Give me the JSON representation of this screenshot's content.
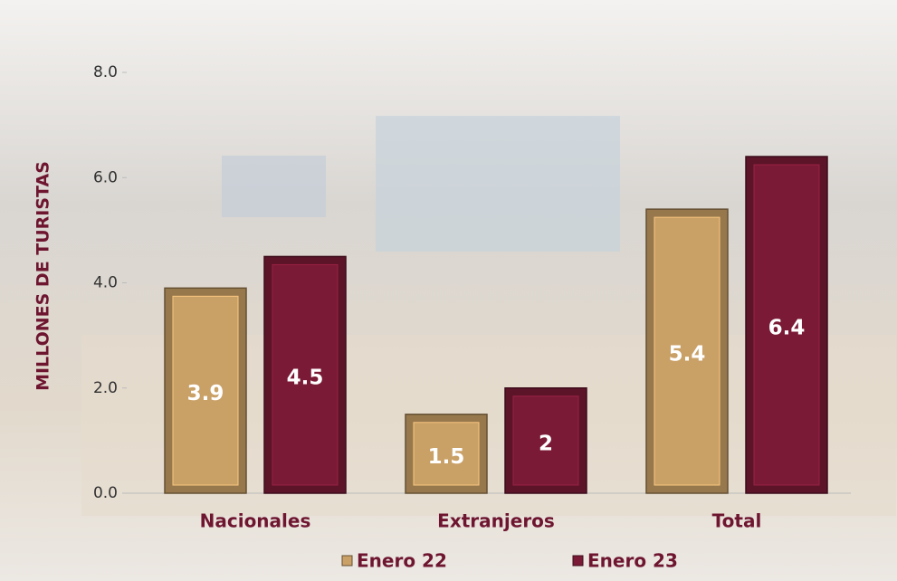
{
  "chart_data": {
    "type": "bar",
    "y_label": "MILLONES DE TURISTAS",
    "categories": [
      "Nacionales",
      "Extranjeros",
      "Total"
    ],
    "series": [
      {
        "name": "Enero 22",
        "color": "#c9a066",
        "values": [
          3.9,
          1.5,
          5.4
        ]
      },
      {
        "name": "Enero 23",
        "color": "#7a1a36",
        "values": [
          4.5,
          2.0,
          6.4
        ]
      }
    ],
    "ylim": [
      0,
      8
    ],
    "yticks": [
      {
        "value": 0,
        "label": "0.0"
      },
      {
        "value": 2,
        "label": "2.0"
      },
      {
        "value": 4,
        "label": "4.0"
      },
      {
        "value": 6,
        "label": "6.0"
      },
      {
        "value": 8,
        "label": "8.0"
      }
    ]
  }
}
